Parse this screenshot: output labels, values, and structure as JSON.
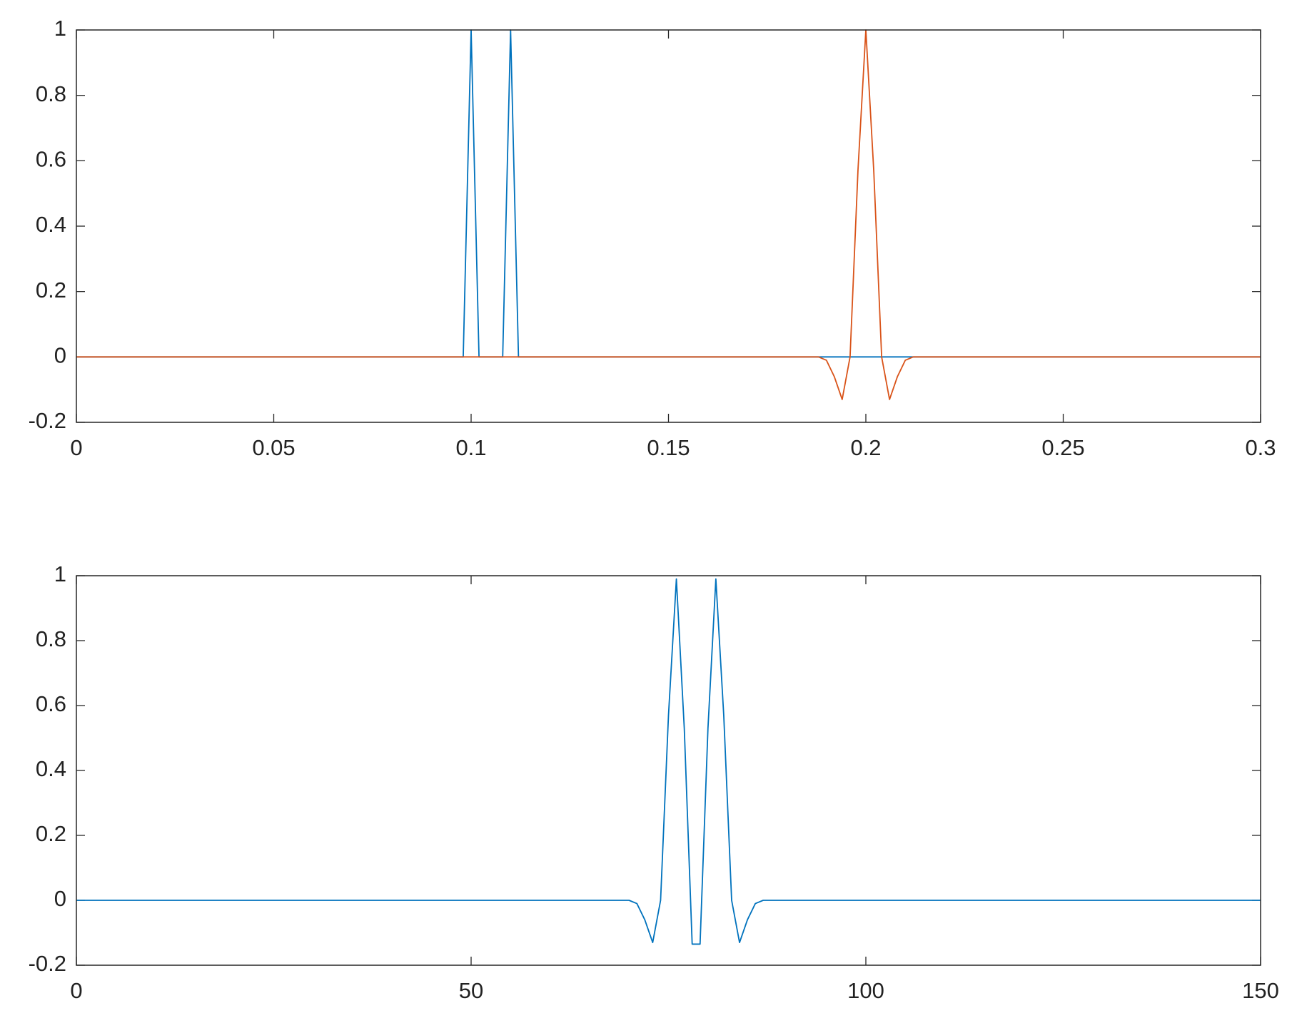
{
  "chart_data": [
    {
      "type": "line",
      "xlim": [
        0,
        0.3
      ],
      "xticks": [
        0,
        0.05,
        0.1,
        0.15,
        0.2,
        0.25,
        0.3
      ],
      "ylim": [
        -0.2,
        1
      ],
      "yticks": [
        -0.2,
        0,
        0.2,
        0.4,
        0.6,
        0.8,
        1
      ],
      "series": [
        {
          "color": "#0072BD",
          "x": [
            0,
            0.098,
            0.1,
            0.102,
            0.108,
            0.11,
            0.112,
            0.3
          ],
          "values": [
            0,
            0,
            1,
            0,
            0,
            1,
            0,
            0
          ]
        },
        {
          "color": "#D95319",
          "x": [
            0,
            0.188,
            0.19,
            0.192,
            0.194,
            0.196,
            0.198,
            0.2,
            0.202,
            0.204,
            0.206,
            0.208,
            0.21,
            0.212,
            0.3
          ],
          "values": [
            0,
            0,
            -0.01,
            -0.06,
            -0.13,
            0,
            0.57,
            1,
            0.57,
            0,
            -0.13,
            -0.06,
            -0.01,
            0,
            0
          ]
        }
      ]
    },
    {
      "type": "line",
      "xlim": [
        0,
        150
      ],
      "xticks": [
        0,
        50,
        100,
        150
      ],
      "ylim": [
        -0.2,
        1
      ],
      "yticks": [
        -0.2,
        0,
        0.2,
        0.4,
        0.6,
        0.8,
        1
      ],
      "series": [
        {
          "color": "#0072BD",
          "x": [
            0,
            70,
            71,
            72,
            73,
            74,
            75,
            76,
            77,
            78,
            79,
            80,
            81,
            82,
            83,
            84,
            85,
            86,
            87,
            150
          ],
          "values": [
            0,
            0,
            -0.01,
            -0.06,
            -0.13,
            0,
            0.57,
            0.99,
            0.53,
            -0.135,
            -0.135,
            0.53,
            0.99,
            0.57,
            0,
            -0.13,
            -0.06,
            -0.01,
            0,
            0
          ]
        }
      ]
    }
  ]
}
